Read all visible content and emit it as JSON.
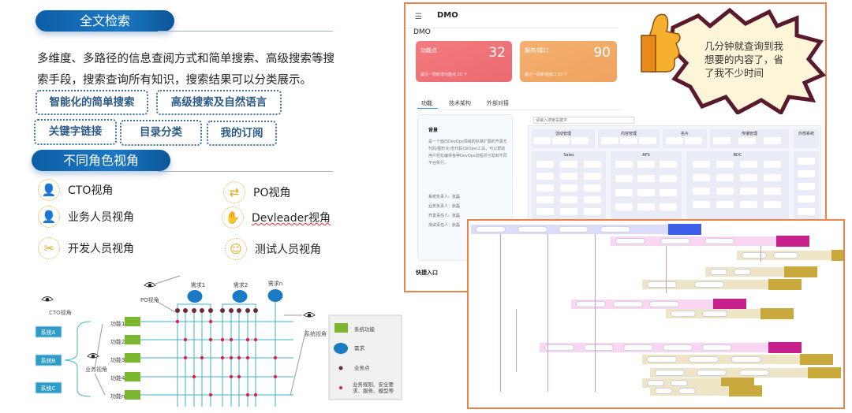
{
  "fulltext": {
    "title": "全文检索",
    "description": "多维度、多路径的信息查阅方式和简单搜索、高级搜索等搜索手段，搜索查询所有知识，搜索结果可以分类展示。",
    "tags": [
      "智能化的简单搜索",
      "高级搜索及自然语言",
      "关键字链接",
      "目录分类",
      "我的订阅"
    ]
  },
  "roles": {
    "title": "不同角色视角",
    "items": [
      {
        "label": "CTO视角",
        "icon": "user-icon"
      },
      {
        "label": "业务人员视角",
        "icon": "user-icon"
      },
      {
        "label": "开发人员视角",
        "icon": "tools-icon"
      },
      {
        "label": "PO视角",
        "icon": "flow-icon"
      },
      {
        "label": "Devleader视角",
        "icon": "hand-box-icon"
      },
      {
        "label": "测试人员视角",
        "icon": "tester-icon"
      }
    ]
  },
  "diagram": {
    "cto_view": "CTO视角",
    "po_view": "PO视角",
    "business_view": "业务视角",
    "system_view": "系统视角",
    "systems": [
      "系统A",
      "系统B",
      "系统C"
    ],
    "functions": [
      "功能1",
      "功能2",
      "功能3",
      "功能4",
      "功能n"
    ],
    "requirements": [
      "需求1",
      "需求2",
      "需求n"
    ],
    "rule_points": [
      [
        0,
        4
      ],
      [
        1,
        4,
        5,
        6,
        8,
        9
      ],
      [
        1,
        3,
        5,
        6,
        7,
        8,
        10
      ],
      [
        2,
        6,
        7,
        10
      ],
      [
        4,
        8,
        9
      ]
    ],
    "legend": [
      {
        "label": "系统功能",
        "color": "#7cb82f"
      },
      {
        "label": "需求",
        "color": "#1a7ac4"
      },
      {
        "label": "业务点",
        "color": "#6b2a3a"
      },
      {
        "label": "业务规则、安全要求、服务、模型等",
        "color": "#e0204a"
      }
    ]
  },
  "app": {
    "title": "DMO",
    "subtitle": "DMO",
    "cards": [
      {
        "label": "功能点",
        "value": "32",
        "footer": "最近一周新增功能点 20 个",
        "color": "#ef6f72"
      },
      {
        "label": "服务/接口",
        "value": "90",
        "footer": "最近一周新增接口 20 个",
        "color": "#f2a860"
      }
    ],
    "tabs": [
      "功能",
      "技术架构",
      "外部对接"
    ],
    "background_title": "背景",
    "background_text": "是一个面向DevOps领域的标准扩展的开源无代码/图形化/低代码(DIOps)工具，可以帮助用户轻松编排各种DevOps流程并分发到不同平台执行。",
    "owners": [
      "系统负责人：张磊",
      "业务负责人：张磊",
      "开发责任人：张磊",
      "测试责任人：张磊"
    ],
    "search_placeholder": "请输入搜索关键字",
    "quick_entry": "快捷入口",
    "groups": [
      "活动管理",
      "内容管理",
      "名片",
      "传播管理",
      "外部系统",
      "Sales",
      "AFS",
      "BDC"
    ]
  },
  "callout": {
    "text": "几分钟就查询到我想要的内容了，省了我不少时间"
  }
}
